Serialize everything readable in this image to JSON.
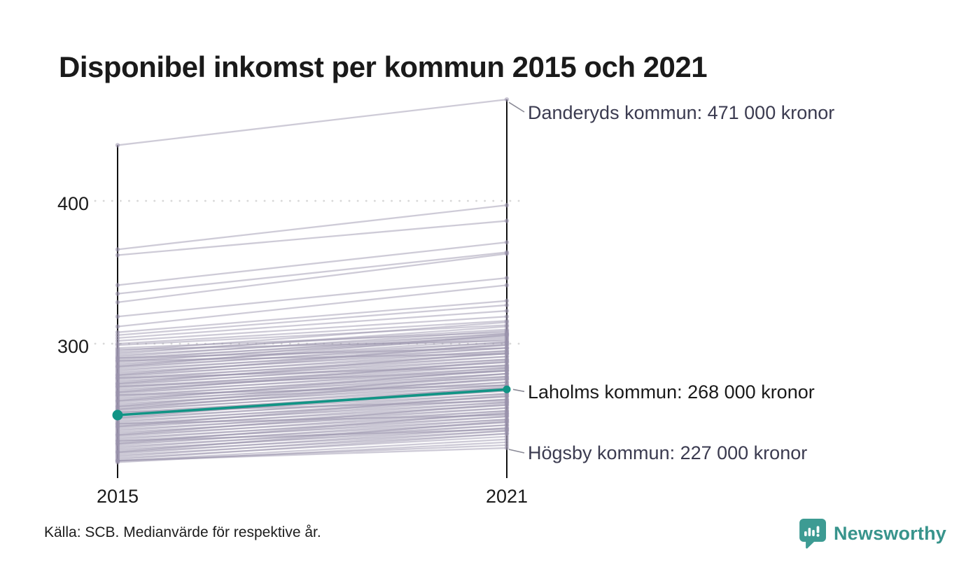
{
  "title": "Disponibel inkomst per kommun 2015 och 2021",
  "source": "Källa: SCB. Medianvärde för respektive år.",
  "brand": {
    "name": "Newsworthy"
  },
  "colors": {
    "highlight": "#119485",
    "line_gray": "#9a94ad",
    "axis": "#111111",
    "grid": "#d8d8d8",
    "leader": "#8a8a96",
    "annotation_dark": "#3b3b50",
    "annotation_black": "#1a1a1a",
    "brand_teal": "#3d9b93"
  },
  "chart_data": {
    "type": "line",
    "subtype": "slope",
    "x_labels": [
      "2015",
      "2021"
    ],
    "y_ticks": [
      300,
      400
    ],
    "grid": "dotted",
    "annotations": [
      {
        "id": "danderyd",
        "label": "Danderyds kommun: 471 000 kronor",
        "value_2021": 471
      },
      {
        "id": "laholm",
        "label": "Laholms kommun: 268 000 kronor",
        "value_2021": 268
      },
      {
        "id": "hogsby",
        "label": "Högsby kommun: 227 000 kronor",
        "value_2021": 227
      }
    ],
    "highlight_series": {
      "name": "Laholms kommun",
      "values": [
        250,
        268
      ]
    },
    "top_series": {
      "name": "Danderyds kommun",
      "values": [
        439,
        471
      ]
    },
    "bottom_series": {
      "name": "Högsby kommun",
      "values": [
        218,
        227
      ]
    },
    "background_series": [
      [
        439,
        471
      ],
      [
        366,
        397
      ],
      [
        362,
        386
      ],
      [
        341,
        371
      ],
      [
        335,
        364
      ],
      [
        329,
        363
      ],
      [
        319,
        346
      ],
      [
        312,
        341
      ],
      [
        308,
        330
      ],
      [
        306,
        327
      ],
      [
        304,
        323
      ],
      [
        302,
        319
      ],
      [
        300,
        316
      ],
      [
        299,
        313
      ],
      [
        297,
        308
      ],
      [
        296,
        302
      ],
      [
        295,
        315
      ],
      [
        294,
        310
      ],
      [
        293,
        312
      ],
      [
        292,
        307
      ],
      [
        291,
        309
      ],
      [
        290,
        305
      ],
      [
        289,
        307
      ],
      [
        288,
        304
      ],
      [
        287,
        306
      ],
      [
        286,
        301
      ],
      [
        285,
        303
      ],
      [
        284,
        299
      ],
      [
        283,
        301
      ],
      [
        282,
        297
      ],
      [
        281,
        299
      ],
      [
        280,
        295
      ],
      [
        279,
        297
      ],
      [
        278,
        293
      ],
      [
        277,
        295
      ],
      [
        276,
        291
      ],
      [
        275,
        293
      ],
      [
        274,
        289
      ],
      [
        273,
        291
      ],
      [
        272,
        287
      ],
      [
        271,
        289
      ],
      [
        270,
        285
      ],
      [
        269,
        287
      ],
      [
        268,
        283
      ],
      [
        267,
        285
      ],
      [
        266,
        281
      ],
      [
        265,
        283
      ],
      [
        264,
        279
      ],
      [
        263,
        281
      ],
      [
        262,
        277
      ],
      [
        261,
        279
      ],
      [
        260,
        275
      ],
      [
        259,
        277
      ],
      [
        258,
        273
      ],
      [
        257,
        275
      ],
      [
        256,
        271
      ],
      [
        255,
        273
      ],
      [
        254,
        269
      ],
      [
        253,
        271
      ],
      [
        252,
        267
      ],
      [
        251,
        269
      ],
      [
        250,
        265
      ],
      [
        249,
        267
      ],
      [
        248,
        263
      ],
      [
        247,
        265
      ],
      [
        246,
        261
      ],
      [
        245,
        263
      ],
      [
        244,
        259
      ],
      [
        243,
        261
      ],
      [
        242,
        257
      ],
      [
        241,
        259
      ],
      [
        240,
        255
      ],
      [
        239,
        257
      ],
      [
        238,
        253
      ],
      [
        237,
        255
      ],
      [
        236,
        251
      ],
      [
        235,
        253
      ],
      [
        234,
        249
      ],
      [
        233,
        251
      ],
      [
        232,
        247
      ],
      [
        231,
        249
      ],
      [
        230,
        245
      ],
      [
        229,
        247
      ],
      [
        228,
        243
      ],
      [
        227,
        245
      ],
      [
        226,
        241
      ],
      [
        225,
        243
      ],
      [
        224,
        239
      ],
      [
        223,
        241
      ],
      [
        222,
        237
      ],
      [
        221,
        239
      ],
      [
        220,
        235
      ],
      [
        219,
        237
      ],
      [
        218,
        233
      ],
      [
        290,
        297
      ],
      [
        284,
        306
      ],
      [
        278,
        300
      ],
      [
        272,
        294
      ],
      [
        266,
        288
      ],
      [
        260,
        282
      ],
      [
        254,
        276
      ],
      [
        248,
        270
      ],
      [
        242,
        264
      ],
      [
        236,
        258
      ],
      [
        230,
        252
      ],
      [
        224,
        246
      ],
      [
        252,
        260
      ],
      [
        264,
        271
      ],
      [
        276,
        284
      ],
      [
        288,
        293
      ],
      [
        244,
        250
      ],
      [
        232,
        240
      ],
      [
        256,
        279
      ],
      [
        270,
        281
      ],
      [
        217,
        231
      ],
      [
        218,
        229
      ],
      [
        218,
        227
      ]
    ]
  }
}
